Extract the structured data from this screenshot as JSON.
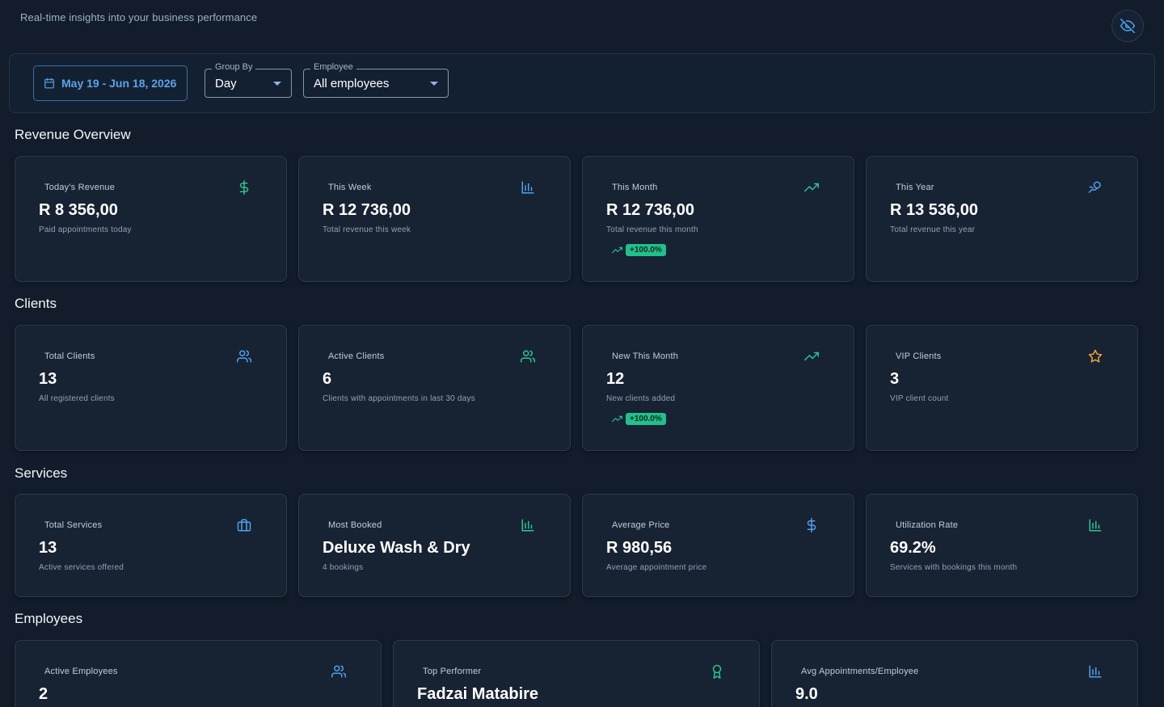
{
  "header": {
    "subtitle": "Real-time insights into your business performance",
    "visibility_icon": "eye-off-icon"
  },
  "filters": {
    "date_range": "May 19 - Jun 18, 2026",
    "group_by": {
      "legend": "Group By",
      "value": "Day"
    },
    "employee": {
      "legend": "Employee",
      "value": "All employees"
    }
  },
  "colors": {
    "background": "#121c2b",
    "card": "#172233",
    "accent_blue": "#4ea3f0",
    "accent_green": "#2bc48f",
    "accent_orange": "#f2a33a",
    "badge_green": "#22c08a"
  },
  "sections": {
    "revenue": {
      "title": "Revenue Overview",
      "cards": [
        {
          "label": "Today's Revenue",
          "value": "R 8 356,00",
          "desc": "Paid appointments today",
          "icon": "dollar-icon"
        },
        {
          "label": "This Week",
          "value": "R 12 736,00",
          "desc": "Total revenue this week",
          "icon": "bar-chart-icon"
        },
        {
          "label": "This Month",
          "value": "R 12 736,00",
          "desc": "Total revenue this month",
          "icon": "trending-up-icon",
          "trend": "+100.0%"
        },
        {
          "label": "This Year",
          "value": "R 13 536,00",
          "desc": "Total revenue this year",
          "icon": "money-hand-icon"
        }
      ]
    },
    "clients": {
      "title": "Clients",
      "cards": [
        {
          "label": "Total Clients",
          "value": "13",
          "desc": "All registered clients",
          "icon": "users-icon"
        },
        {
          "label": "Active Clients",
          "value": "6",
          "desc": "Clients with appointments in last 30 days",
          "icon": "users-icon"
        },
        {
          "label": "New This Month",
          "value": "12",
          "desc": "New clients added",
          "icon": "trending-up-icon",
          "trend": "+100.0%"
        },
        {
          "label": "VIP Clients",
          "value": "3",
          "desc": "VIP client count",
          "icon": "star-icon"
        }
      ]
    },
    "services": {
      "title": "Services",
      "cards": [
        {
          "label": "Total Services",
          "value": "13",
          "desc": "Active services offered",
          "icon": "briefcase-icon"
        },
        {
          "label": "Most Booked",
          "value": "Deluxe Wash & Dry",
          "desc": "4 bookings",
          "icon": "bar-chart-icon"
        },
        {
          "label": "Average Price",
          "value": "R 980,56",
          "desc": "Average appointment price",
          "icon": "dollar-icon"
        },
        {
          "label": "Utilization Rate",
          "value": "69.2%",
          "desc": "Services with bookings this month",
          "icon": "bar-chart-icon"
        }
      ]
    },
    "employees": {
      "title": "Employees",
      "cards": [
        {
          "label": "Active Employees",
          "value": "2",
          "icon": "users-icon"
        },
        {
          "label": "Top Performer",
          "value": "Fadzai Matabire",
          "icon": "award-icon"
        },
        {
          "label": "Avg Appointments/Employee",
          "value": "9.0",
          "icon": "bar-chart-icon"
        }
      ]
    }
  }
}
